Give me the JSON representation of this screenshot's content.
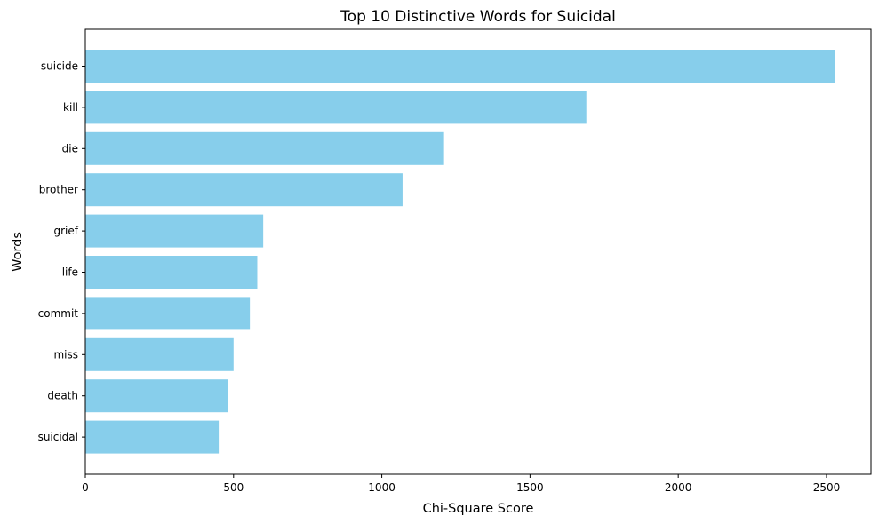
{
  "chart_data": {
    "type": "bar",
    "orientation": "horizontal",
    "title": "Top 10 Distinctive Words for Suicidal",
    "xlabel": "Chi-Square Score",
    "ylabel": "Words",
    "categories": [
      "suicide",
      "kill",
      "die",
      "brother",
      "grief",
      "life",
      "commit",
      "miss",
      "death",
      "suicidal"
    ],
    "values": [
      2530,
      1690,
      1210,
      1070,
      600,
      580,
      555,
      500,
      480,
      450
    ],
    "xlim": [
      0,
      2650
    ],
    "xticks": [
      0,
      500,
      1000,
      1500,
      2000,
      2500
    ],
    "bar_color": "#87CEEB",
    "grid": false,
    "legend": "none"
  }
}
